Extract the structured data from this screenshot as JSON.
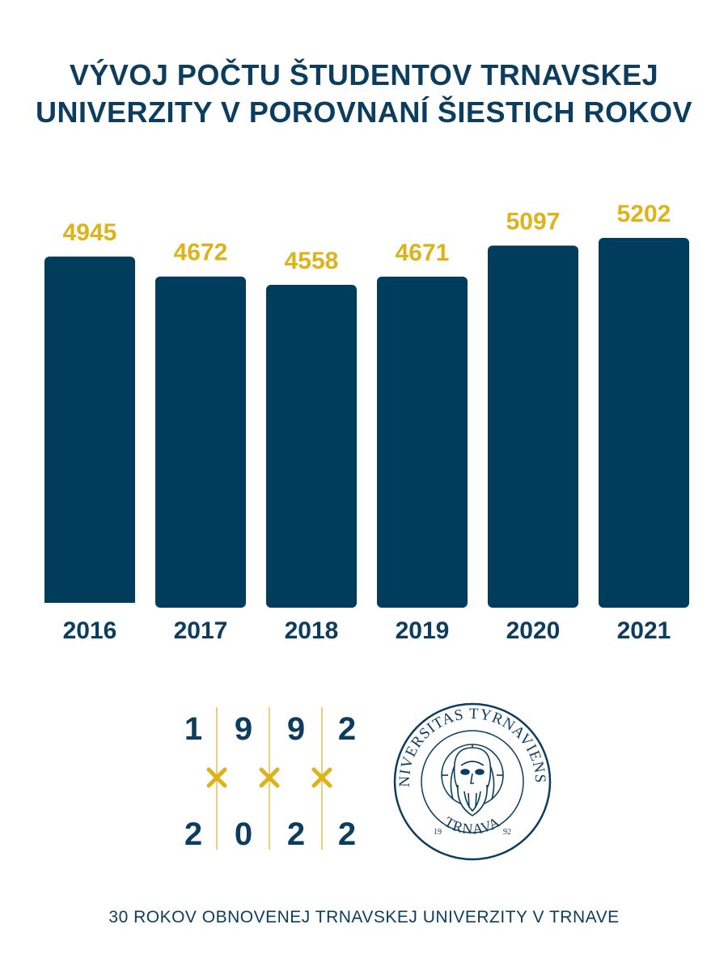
{
  "chart_data": {
    "type": "bar",
    "title_lines": [
      "VÝVOJ POČTU ŠTUDENTOV TRNAVSKEJ",
      "UNIVERZITY V POROVNANÍ ŠIESTICH ROKOV"
    ],
    "categories": [
      "2016",
      "2017",
      "2018",
      "2019",
      "2020",
      "2021"
    ],
    "values": [
      4945,
      4672,
      4558,
      4671,
      5097,
      5202
    ],
    "xlabel": "",
    "ylabel": "",
    "grid": false,
    "legend": "none",
    "colors": {
      "bar": "#003d5d",
      "value_label": "#dcb31a",
      "category_label": "#0c3c5e"
    }
  },
  "anniversary": {
    "top_digits": [
      "1",
      "9",
      "9",
      "2"
    ],
    "bottom_digits": [
      "2",
      "0",
      "2",
      "2"
    ],
    "digit_color": "#0c3c5e",
    "accent_color": "#dcb31a"
  },
  "seal": {
    "ring_text": "UNIVERSITAS TYRNAVIENSIS",
    "bottom_text": "TRNAVA",
    "year_left": "19",
    "year_right": "92"
  },
  "footer": {
    "text": "30 ROKOV OBNOVENEJ TRNAVSKEJ UNIVERZITY V TRNAVE"
  }
}
